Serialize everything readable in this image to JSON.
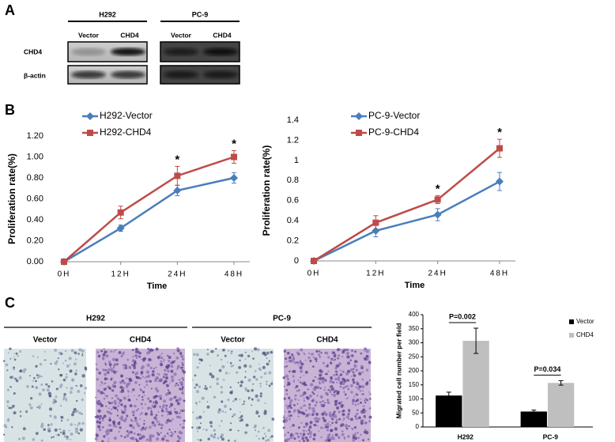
{
  "panel_labels": [
    "A",
    "B",
    "C"
  ],
  "western_blot": {
    "groups": [
      {
        "title": "H292",
        "lanes": [
          "Vector",
          "CHD4"
        ]
      },
      {
        "title": "PC-9",
        "lanes": [
          "Vector",
          "CHD4"
        ]
      }
    ],
    "rows": [
      "CHD4",
      "β-actin"
    ]
  },
  "migration_images": {
    "groups": [
      {
        "title": "H292",
        "lanes": [
          "Vector",
          "CHD4"
        ]
      },
      {
        "title": "PC-9",
        "lanes": [
          "Vector",
          "CHD4"
        ]
      }
    ]
  },
  "chart_data": [
    {
      "type": "line",
      "x_label": "Time",
      "y_label": "Proliferation rate(%)",
      "categories": [
        "0H",
        "12H",
        "24H",
        "48H"
      ],
      "series": [
        {
          "name": "H292-Vector",
          "color": "#4a7ebb",
          "marker": "diamond",
          "values": [
            0,
            0.32,
            0.68,
            0.8
          ],
          "errors": [
            0,
            0.03,
            0.05,
            0.05
          ]
        },
        {
          "name": "H292-CHD4",
          "color": "#be4b48",
          "marker": "square",
          "values": [
            0,
            0.47,
            0.82,
            1.0
          ],
          "errors": [
            0,
            0.06,
            0.09,
            0.06
          ]
        }
      ],
      "ylim": [
        0,
        1.2
      ],
      "yticks": [
        {
          "value": 0,
          "label": "0.00"
        },
        {
          "value": 0.2,
          "label": "0.20"
        },
        {
          "value": 0.4,
          "label": "0.40"
        },
        {
          "value": 0.6,
          "label": "0.60"
        },
        {
          "value": 0.8,
          "label": "0.80"
        },
        {
          "value": 1.0,
          "label": "1.00"
        },
        {
          "value": 1.2,
          "label": "1.20"
        }
      ],
      "legend": "upper left",
      "annotations": [
        {
          "text": "*",
          "x": "24H"
        },
        {
          "text": "*",
          "x": "48H"
        }
      ]
    },
    {
      "type": "line",
      "x_label": "Time",
      "y_label": "Proliferation rate(%)",
      "categories": [
        "0H",
        "12H",
        "24H",
        "48H"
      ],
      "series": [
        {
          "name": "PC-9-Vector",
          "color": "#4a7ebb",
          "marker": "diamond",
          "values": [
            0,
            0.3,
            0.46,
            0.79
          ],
          "errors": [
            0,
            0.06,
            0.06,
            0.09
          ]
        },
        {
          "name": "PC-9-CHD4",
          "color": "#be4b48",
          "marker": "square",
          "values": [
            0,
            0.38,
            0.61,
            1.12
          ],
          "errors": [
            0,
            0.07,
            0.04,
            0.09
          ]
        }
      ],
      "ylim": [
        0,
        1.4
      ],
      "yticks": [
        0,
        0.2,
        0.4,
        0.6,
        0.8,
        1,
        1.2,
        1.4
      ],
      "legend": "upper left",
      "annotations": [
        {
          "text": "*",
          "x": "24H"
        },
        {
          "text": "*",
          "x": "48H"
        }
      ]
    },
    {
      "type": "bar",
      "y_label": "Migrated cell number per field",
      "categories": [
        "H292",
        "PC-9"
      ],
      "series": [
        {
          "name": "Vector",
          "color": "#000000",
          "values": [
            112,
            55
          ],
          "errors": [
            12,
            5
          ]
        },
        {
          "name": "CHD4",
          "color": "#bfbfbf",
          "values": [
            307,
            157
          ],
          "errors": [
            45,
            8
          ]
        }
      ],
      "ylim": [
        0,
        400
      ],
      "yticks": [
        0,
        50,
        100,
        150,
        200,
        250,
        300,
        350,
        400
      ],
      "legend": "upper right",
      "annotations": [
        {
          "text": "P=0.002",
          "x": "H292"
        },
        {
          "text": "P=0.034",
          "x": "PC-9"
        }
      ]
    }
  ]
}
